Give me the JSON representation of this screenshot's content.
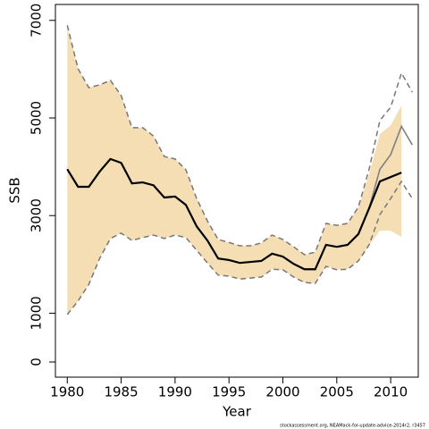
{
  "chart_data": {
    "type": "band_line",
    "x_label": "Year",
    "y_label": "SSB",
    "footnote": "stockassessment.org, NEAMack-for-update-advice-2014r2, r3457",
    "x": [
      1980,
      1981,
      1982,
      1983,
      1984,
      1985,
      1986,
      1987,
      1988,
      1989,
      1990,
      1991,
      1992,
      1993,
      1994,
      1995,
      1996,
      1997,
      1998,
      1999,
      2000,
      2001,
      2002,
      2003,
      2004,
      2005,
      2006,
      2007,
      2008,
      2009,
      2010,
      2011,
      2012
    ],
    "band": {
      "color": "#f5deb3",
      "upper": [
        6900,
        6010,
        5620,
        5680,
        5770,
        5460,
        4800,
        4800,
        4630,
        4210,
        4160,
        3940,
        3350,
        2890,
        2510,
        2450,
        2380,
        2380,
        2440,
        2600,
        2510,
        2360,
        2200,
        2250,
        2840,
        2800,
        2840,
        3170,
        3850,
        4670,
        4850,
        5260,
        null
      ],
      "lower": [
        970,
        1250,
        1590,
        2120,
        2530,
        2640,
        2490,
        2550,
        2600,
        2530,
        2600,
        2550,
        2290,
        2030,
        1780,
        1760,
        1700,
        1720,
        1740,
        1900,
        1890,
        1740,
        1630,
        1610,
        1960,
        1890,
        1900,
        2070,
        2380,
        2690,
        2690,
        2560,
        null
      ]
    },
    "series": [
      {
        "color": "#777777",
        "dashed": true,
        "values": [
          6900,
          6010,
          5620,
          5680,
          5770,
          5460,
          4800,
          4800,
          4630,
          4210,
          4160,
          3940,
          3350,
          2890,
          2510,
          2450,
          2380,
          2380,
          2440,
          2600,
          2510,
          2360,
          2200,
          2250,
          2840,
          2800,
          2840,
          3170,
          3950,
          4950,
          5220,
          5920,
          5530
        ]
      },
      {
        "color": "#777777",
        "dashed": true,
        "values": [
          970,
          1250,
          1590,
          2120,
          2530,
          2640,
          2490,
          2550,
          2600,
          2530,
          2600,
          2550,
          2290,
          2030,
          1780,
          1760,
          1700,
          1720,
          1740,
          1900,
          1890,
          1740,
          1630,
          1610,
          1960,
          1890,
          1900,
          2070,
          2400,
          3020,
          3350,
          3700,
          3350
        ]
      },
      {
        "color": "#808080",
        "dashed": false,
        "width": 1.6,
        "values": [
          3950,
          3590,
          3590,
          3900,
          4160,
          4080,
          3660,
          3680,
          3620,
          3370,
          3390,
          3220,
          2780,
          2490,
          2120,
          2090,
          2030,
          2050,
          2070,
          2220,
          2160,
          2010,
          1900,
          1900,
          2400,
          2360,
          2400,
          2620,
          3150,
          3950,
          4250,
          4830,
          4450
        ]
      },
      {
        "color": "#000000",
        "dashed": false,
        "width": 2.2,
        "values": [
          3950,
          3590,
          3590,
          3900,
          4160,
          4080,
          3660,
          3680,
          3620,
          3370,
          3390,
          3220,
          2780,
          2490,
          2120,
          2090,
          2030,
          2050,
          2070,
          2220,
          2160,
          2010,
          1900,
          1900,
          2400,
          2360,
          2400,
          2620,
          3150,
          3700,
          3790,
          3880,
          null
        ]
      }
    ],
    "xlim": [
      1978.9,
      2012.56
    ],
    "ylim": [
      -311,
      7326
    ],
    "xticks": [
      1980,
      1985,
      1990,
      1995,
      2000,
      2005,
      2010
    ],
    "yticks": [
      0,
      1000,
      3000,
      5000,
      7000
    ]
  }
}
